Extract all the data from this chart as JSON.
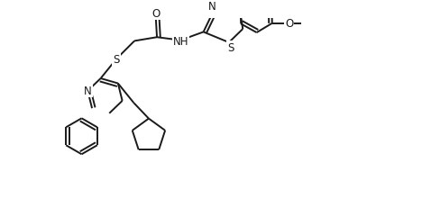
{
  "bg_color": "#ffffff",
  "line_color": "#1a1a1a",
  "line_width": 1.4,
  "font_size": 8.5,
  "figsize": [
    4.68,
    2.32
  ],
  "dpi": 100,
  "xlim": [
    0,
    10
  ],
  "ylim": [
    0,
    5
  ]
}
